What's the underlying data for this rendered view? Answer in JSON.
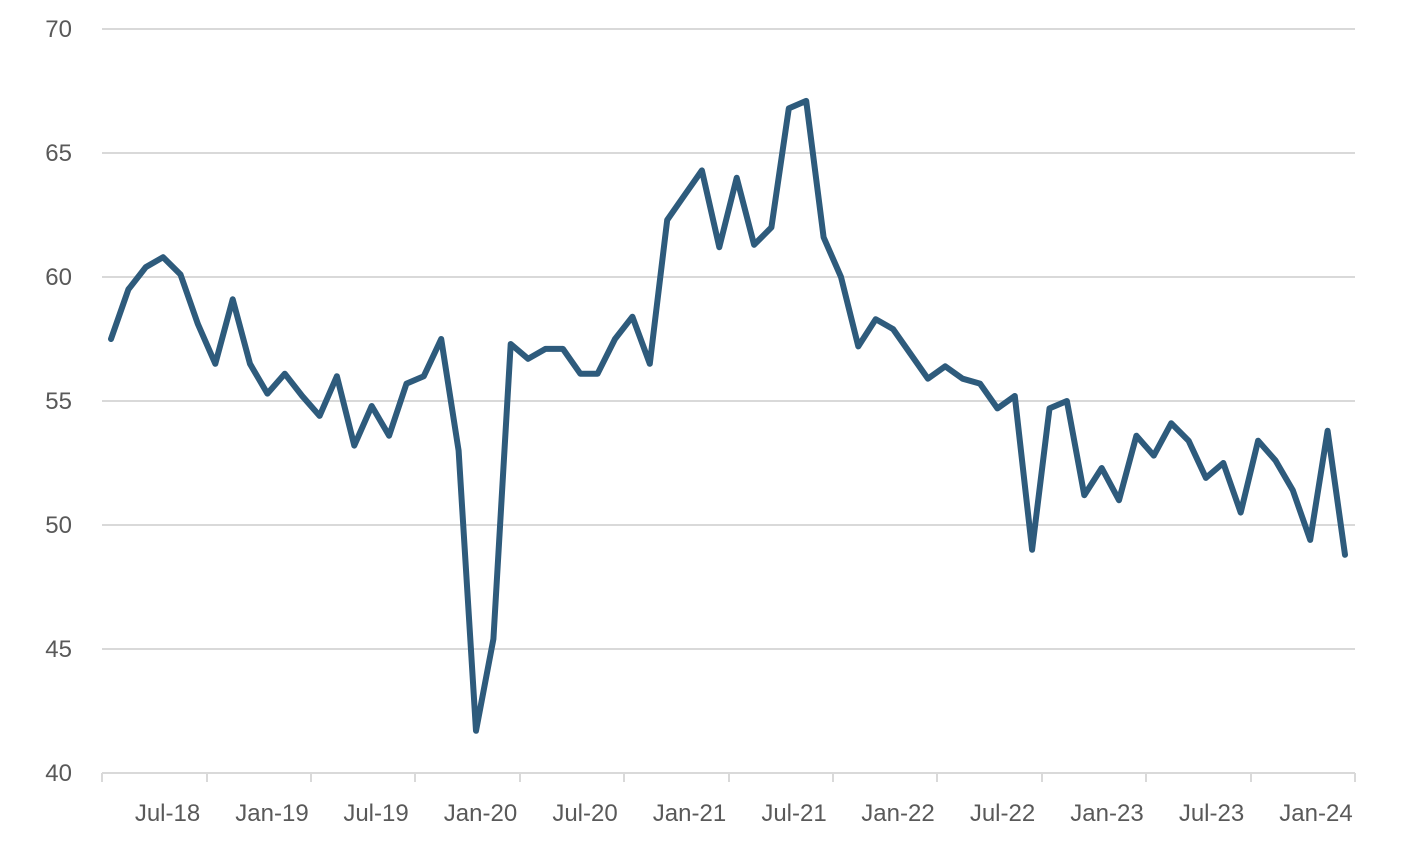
{
  "chart_data": {
    "type": "line",
    "title": "",
    "xlabel": "",
    "ylabel": "",
    "ylim": [
      40,
      70
    ],
    "yticks": [
      "40",
      "45",
      "50",
      "55",
      "60",
      "65",
      "70"
    ],
    "xticks": [
      "Jul-18",
      "Jan-19",
      "Jul-19",
      "Jan-20",
      "Jul-20",
      "Jan-21",
      "Jul-21",
      "Jan-22",
      "Jul-22",
      "Jan-23",
      "Jul-23",
      "Jan-24"
    ],
    "grid": true,
    "legend": "none",
    "line_color": "#2e5b7c",
    "series": [
      {
        "x": [
          "Jul-18",
          "Aug-18",
          "Sep-18",
          "Oct-18",
          "Nov-18",
          "Dec-18",
          "Jan-19",
          "Feb-19",
          "Mar-19",
          "Apr-19",
          "May-19",
          "Jun-19",
          "Jul-19",
          "Aug-19",
          "Sep-19",
          "Oct-19",
          "Nov-19",
          "Dec-19",
          "Jan-20",
          "Feb-20",
          "Mar-20",
          "Apr-20",
          "May-20",
          "Jun-20",
          "Jul-20",
          "Aug-20",
          "Sep-20",
          "Oct-20",
          "Nov-20",
          "Dec-20",
          "Jan-21",
          "Feb-21",
          "Mar-21",
          "Apr-21",
          "May-21",
          "Jun-21",
          "Jul-21",
          "Aug-21",
          "Sep-21",
          "Oct-21",
          "Nov-21",
          "Dec-21",
          "Jan-22",
          "Feb-22",
          "Mar-22",
          "Apr-22",
          "May-22",
          "Jun-22",
          "Jul-22",
          "Aug-22",
          "Sep-22",
          "Oct-22",
          "Nov-22",
          "Dec-22",
          "Jan-23",
          "Feb-23",
          "Mar-23",
          "Apr-23",
          "May-23",
          "Jun-23",
          "Jul-23",
          "Aug-23",
          "Sep-23",
          "Oct-23",
          "Nov-23",
          "Dec-23",
          "Jan-24",
          "Feb-24",
          "Mar-24",
          "Apr-24",
          "May-24",
          "Jun-24"
        ],
        "values": [
          57.5,
          59.5,
          60.4,
          60.8,
          60.1,
          58.1,
          56.5,
          59.1,
          56.5,
          55.3,
          56.1,
          55.2,
          54.4,
          56.0,
          53.2,
          54.8,
          53.6,
          55.7,
          56.0,
          57.5,
          53.0,
          41.7,
          45.4,
          57.3,
          56.7,
          57.1,
          57.1,
          56.1,
          56.1,
          57.5,
          58.4,
          56.5,
          62.3,
          63.3,
          64.3,
          61.2,
          64.0,
          61.3,
          62.0,
          66.8,
          67.1,
          61.6,
          60.0,
          57.2,
          58.3,
          57.9,
          56.9,
          55.9,
          56.4,
          55.9,
          55.7,
          54.7,
          55.2,
          49.0,
          54.7,
          55.0,
          51.2,
          52.3,
          51.0,
          53.6,
          52.8,
          54.1,
          53.4,
          51.9,
          52.5,
          50.5,
          53.4,
          52.6,
          51.4,
          49.4,
          53.8,
          48.8
        ]
      }
    ]
  }
}
